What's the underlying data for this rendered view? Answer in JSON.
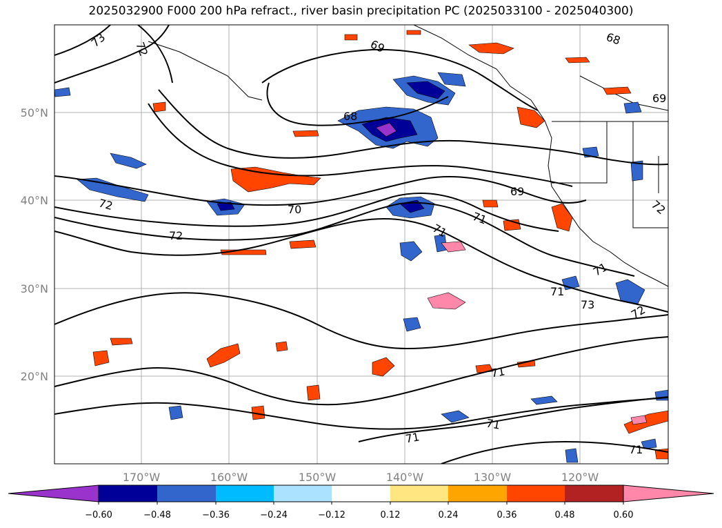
{
  "title": "2025032900 F000 200 hPa refract., river basin precipitation PC (2025033100 - 2025040300)",
  "axes": {
    "lat_labels": [
      "50°N",
      "40°N",
      "30°N",
      "20°N"
    ],
    "lon_labels": [
      "170°W",
      "160°W",
      "150°W",
      "140°W",
      "130°W",
      "120°W"
    ]
  },
  "contour_labels": [
    "73",
    "72",
    "69",
    "68",
    "68",
    "69",
    "72",
    "70",
    "72",
    "71",
    "71",
    "69",
    "72",
    "71",
    "71",
    "73",
    "72",
    "71",
    "71",
    "71",
    "71"
  ],
  "colorbar": {
    "colors": [
      "#9933cc",
      "#000099",
      "#3366cc",
      "#00bbff",
      "#aae2ff",
      "#ffffff",
      "#ffe680",
      "#ffa500",
      "#ff4500",
      "#b22222",
      "#ff88aa"
    ],
    "ticks": [
      "−0.60",
      "−0.48",
      "−0.36",
      "−0.24",
      "−0.12",
      "0.12",
      "0.24",
      "0.36",
      "0.48",
      "0.60"
    ]
  }
}
